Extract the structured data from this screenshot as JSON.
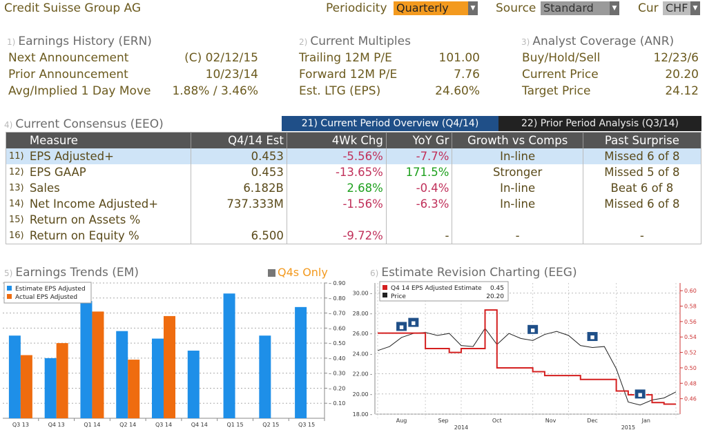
{
  "header": {
    "company": "Credit Suisse Group AG",
    "periodicity_label": "Periodicity",
    "periodicity_value": "Quarterly",
    "source_label": "Source",
    "source_value": "Standard",
    "cur_label": "Cur",
    "cur_value": "CHF"
  },
  "ern": {
    "num": "1)",
    "title": "Earnings History (ERN)",
    "rows": [
      {
        "label": "Next Announcement",
        "value": "(C)  02/12/15"
      },
      {
        "label": "Prior Announcement",
        "value": "10/23/14"
      },
      {
        "label": "Avg/Implied 1 Day Move",
        "value": "1.88% / 3.46%"
      }
    ]
  },
  "multiples": {
    "num": "2)",
    "title": "Current Multiples",
    "rows": [
      {
        "label": "Trailing 12M P/E",
        "value": "101.00"
      },
      {
        "label": "Forward 12M P/E",
        "value": "7.76"
      },
      {
        "label": "Est. LTG (EPS)",
        "value": "24.60%"
      }
    ]
  },
  "anr": {
    "num": "3)",
    "title": "Analyst Coverage (ANR)",
    "rows": [
      {
        "label": "Buy/Hold/Sell",
        "value": "12/23/6"
      },
      {
        "label": "Current Price",
        "value": "20.20"
      },
      {
        "label": "Target Price",
        "value": "24.12"
      }
    ]
  },
  "consensus": {
    "num": "4)",
    "title": "Current Consensus (EEO)",
    "tab1": "21) Current Period Overview (Q4/14)",
    "tab2": "22) Prior Period Analysis (Q3/14)",
    "headers": [
      "Measure",
      "Q4/14 Est",
      "4Wk Chg",
      "YoY Gr",
      "Growth vs Comps",
      "Past Surprise"
    ],
    "rows": [
      {
        "num": "11)",
        "measure": "EPS Adjusted+",
        "est": "0.453",
        "chg": "-5.56%",
        "yoy": "-7.7%",
        "growth": "In-line",
        "surprise": "Missed 6 of 8"
      },
      {
        "num": "12)",
        "measure": "EPS GAAP",
        "est": "0.453",
        "chg": "-13.65%",
        "yoy": "171.5%",
        "growth": "Stronger",
        "surprise": "Missed 5 of 8"
      },
      {
        "num": "13)",
        "measure": "Sales",
        "est": "6.182B",
        "chg": "2.68%",
        "yoy": "-0.4%",
        "growth": "In-line",
        "surprise": "Beat 6 of 8"
      },
      {
        "num": "14)",
        "measure": "Net Income Adjusted+",
        "est": "737.333M",
        "chg": "-1.56%",
        "yoy": "-6.3%",
        "growth": "In-line",
        "surprise": "Missed 6 of 8"
      },
      {
        "num": "15)",
        "measure": "Return on Assets %",
        "est": "",
        "chg": "",
        "yoy": "",
        "growth": "",
        "surprise": ""
      },
      {
        "num": "16)",
        "measure": "Return on Equity %",
        "est": "6.500",
        "chg": "-9.72%",
        "yoy": "-",
        "growth": "-",
        "surprise": "-"
      }
    ]
  },
  "em": {
    "num": "5)",
    "title": "Earnings Trends (EM)",
    "toggle": "Q4s Only"
  },
  "eeg": {
    "num": "6)",
    "title": "Estimate Revision Charting (EEG)"
  },
  "colors": {
    "estimate": "#1e8fe8",
    "actual": "#ef6c0f",
    "price": "#222222",
    "revision": "#d41f1f"
  },
  "chart_data": [
    {
      "type": "bar",
      "categories": [
        "Q3 13",
        "Q4 13",
        "Q1 14",
        "Q2 14",
        "Q3 14",
        "Q4 14",
        "Q1 15",
        "Q2 15",
        "Q3 15"
      ],
      "series": [
        {
          "name": "Estimate EPS Adjusted",
          "values": [
            0.55,
            0.4,
            0.78,
            0.58,
            0.53,
            0.45,
            0.83,
            0.55,
            0.74
          ]
        },
        {
          "name": "Actual EPS Adjusted",
          "values": [
            0.42,
            0.5,
            0.71,
            0.39,
            0.68,
            null,
            null,
            null,
            null
          ]
        }
      ],
      "ylim": [
        0,
        0.9
      ],
      "yticks": [
        "0.10",
        "0.20",
        "0.30",
        "0.40",
        "0.50",
        "0.60",
        "0.70",
        "0.80",
        "0.90"
      ],
      "grid": true,
      "legend": "top-left"
    },
    {
      "type": "line",
      "legend_entries": [
        {
          "name": "Q4 14 EPS Adjusted Estimate",
          "value": "0.45"
        },
        {
          "name": "Price",
          "value": "20.20"
        }
      ],
      "x": [
        "Aug 01",
        "Aug 10",
        "Aug 20",
        "Aug 26",
        "Sep 02",
        "Sep 12",
        "Sep 22",
        "Oct 01",
        "Oct 06",
        "Oct 10",
        "Oct 16",
        "Oct 22",
        "Oct 28",
        "Nov 05",
        "Nov 15",
        "Nov 25",
        "Dec 05",
        "Dec 15",
        "Dec 22",
        "Dec 29",
        "Jan 03",
        "Jan 08",
        "Jan 14",
        "Jan 20",
        "Jan 26",
        "Feb 02"
      ],
      "series": [
        {
          "name": "Price",
          "axis": "left",
          "values": [
            24.3,
            24.7,
            25.6,
            26.0,
            26.1,
            25.8,
            26.0,
            24.8,
            24.7,
            26.5,
            24.9,
            26.0,
            25.5,
            25.3,
            25.9,
            26.2,
            25.8,
            24.8,
            24.6,
            24.7,
            22.5,
            19.2,
            18.9,
            19.4,
            19.6,
            20.2
          ]
        },
        {
          "name": "Q4 14 EPS Adjusted Estimate",
          "axis": "right",
          "values": [
            0.545,
            0.545,
            0.545,
            0.545,
            0.525,
            0.525,
            0.52,
            0.525,
            0.525,
            0.575,
            0.5,
            0.5,
            0.5,
            0.495,
            0.49,
            0.49,
            0.49,
            0.485,
            0.485,
            0.485,
            0.47,
            0.465,
            0.465,
            0.455,
            0.453,
            0.453
          ]
        }
      ],
      "ylim_left": [
        18,
        31
      ],
      "ylim_right": [
        0.44,
        0.61
      ],
      "yticks_left": [
        "18.00",
        "20.00",
        "22.00",
        "24.00",
        "26.00",
        "28.00",
        "30.00"
      ],
      "yticks_right": [
        "0.46",
        "0.48",
        "0.50",
        "0.52",
        "0.54",
        "0.56",
        "0.58",
        "0.60"
      ],
      "month_labels": [
        "Aug",
        "Sep",
        "Oct",
        "Nov",
        "Dec",
        "Jan"
      ],
      "year_labels": [
        "2014",
        "2015"
      ],
      "event_markers": [
        "Aug 20",
        "Aug 26",
        "Nov 05",
        "Dec 22",
        "Jan 14"
      ],
      "grid": true,
      "legend": "top-left"
    }
  ]
}
